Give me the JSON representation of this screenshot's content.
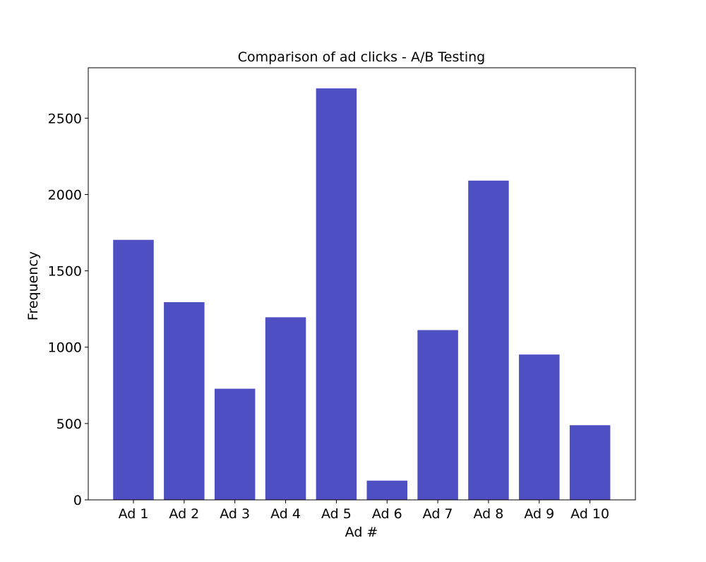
{
  "chart_data": {
    "type": "bar",
    "title": "Comparison of ad clicks - A/B Testing",
    "xlabel": "Ad #",
    "ylabel": "Frequency",
    "categories": [
      "Ad 1",
      "Ad 2",
      "Ad 3",
      "Ad 4",
      "Ad 5",
      "Ad 6",
      "Ad 7",
      "Ad 8",
      "Ad 9",
      "Ad 10"
    ],
    "values": [
      1703,
      1295,
      728,
      1196,
      2695,
      126,
      1112,
      2091,
      952,
      489
    ],
    "ylim": [
      0,
      2830
    ],
    "yticks": [
      0,
      500,
      1000,
      1500,
      2000,
      2500
    ],
    "bar_color": "#4f4fc4",
    "grid": false,
    "legend": "none"
  }
}
